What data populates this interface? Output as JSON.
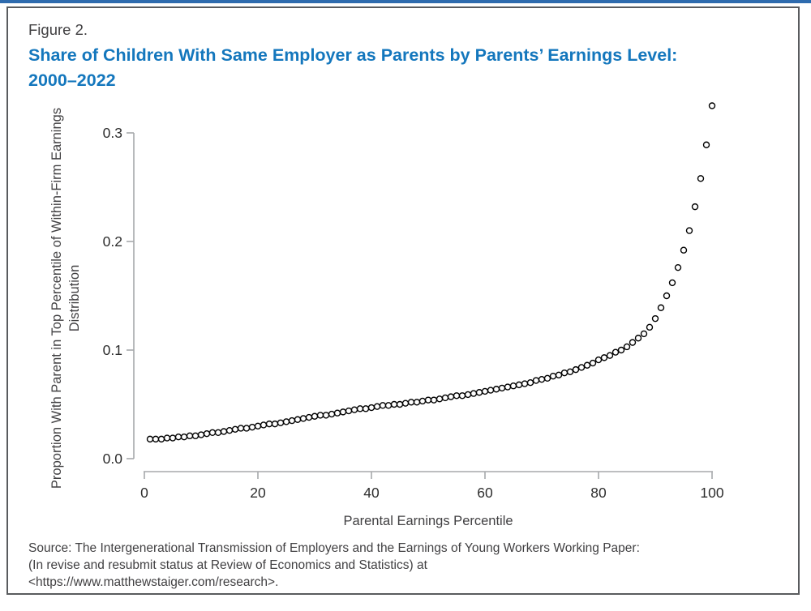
{
  "figure": {
    "label": "Figure 2.",
    "title": "Share of Children With Same Employer as Parents by Parents’ Earnings Level: 2000–2022",
    "title_color": "#1477bd",
    "accent_bar_color": "#2e6bae",
    "frame_border_color": "#595b5e"
  },
  "chart_data": {
    "type": "scatter",
    "marker": "open-circle",
    "marker_color": "#000000",
    "axis_line_color": "#a7a9ac",
    "tick_label_color": "#2d2d2d",
    "grid": "off",
    "legend": "none",
    "xlabel": "Parental Earnings Percentile",
    "ylabel_line1": "Proportion With Parent in Top Percentile of",
    "ylabel_line2": "Within-Firm Earnings Distribution",
    "xlim": [
      0,
      100
    ],
    "ylim": [
      0.0,
      0.3
    ],
    "x_tick_values": [
      0,
      20,
      40,
      60,
      80,
      100
    ],
    "x_tick_labels": [
      "0",
      "20",
      "40",
      "60",
      "80",
      "100"
    ],
    "y_tick_values": [
      0.0,
      0.1,
      0.2,
      0.3
    ],
    "y_tick_labels": [
      "0.0",
      "0.1",
      "0.2",
      "0.3"
    ],
    "x": [
      1,
      2,
      3,
      4,
      5,
      6,
      7,
      8,
      9,
      10,
      11,
      12,
      13,
      14,
      15,
      16,
      17,
      18,
      19,
      20,
      21,
      22,
      23,
      24,
      25,
      26,
      27,
      28,
      29,
      30,
      31,
      32,
      33,
      34,
      35,
      36,
      37,
      38,
      39,
      40,
      41,
      42,
      43,
      44,
      45,
      46,
      47,
      48,
      49,
      50,
      51,
      52,
      53,
      54,
      55,
      56,
      57,
      58,
      59,
      60,
      61,
      62,
      63,
      64,
      65,
      66,
      67,
      68,
      69,
      70,
      71,
      72,
      73,
      74,
      75,
      76,
      77,
      78,
      79,
      80,
      81,
      82,
      83,
      84,
      85,
      86,
      87,
      88,
      89,
      90,
      91,
      92,
      93,
      94,
      95,
      96,
      97,
      98,
      99,
      100
    ],
    "y": [
      0.018,
      0.018,
      0.018,
      0.019,
      0.019,
      0.02,
      0.02,
      0.021,
      0.021,
      0.022,
      0.023,
      0.024,
      0.024,
      0.025,
      0.026,
      0.027,
      0.028,
      0.028,
      0.029,
      0.03,
      0.031,
      0.032,
      0.032,
      0.033,
      0.034,
      0.035,
      0.036,
      0.037,
      0.038,
      0.039,
      0.04,
      0.04,
      0.041,
      0.042,
      0.043,
      0.044,
      0.045,
      0.046,
      0.046,
      0.047,
      0.048,
      0.049,
      0.049,
      0.05,
      0.05,
      0.051,
      0.052,
      0.052,
      0.053,
      0.054,
      0.054,
      0.055,
      0.056,
      0.057,
      0.058,
      0.058,
      0.059,
      0.06,
      0.061,
      0.062,
      0.063,
      0.064,
      0.065,
      0.066,
      0.067,
      0.068,
      0.069,
      0.07,
      0.072,
      0.073,
      0.074,
      0.076,
      0.077,
      0.079,
      0.08,
      0.082,
      0.084,
      0.086,
      0.088,
      0.091,
      0.093,
      0.095,
      0.098,
      0.1,
      0.103,
      0.107,
      0.111,
      0.115,
      0.121,
      0.129,
      0.139,
      0.15,
      0.162,
      0.176,
      0.192,
      0.21,
      0.232,
      0.258,
      0.289,
      0.325
    ]
  },
  "source": {
    "lines": [
      "Source: The Intergenerational Transmission of Employers and the Earnings of Young Workers Working Paper:",
      "(In revise and resubmit status at Review of Economics and Statistics) at",
      "<https://www.matthewstaiger.com/research>."
    ]
  }
}
